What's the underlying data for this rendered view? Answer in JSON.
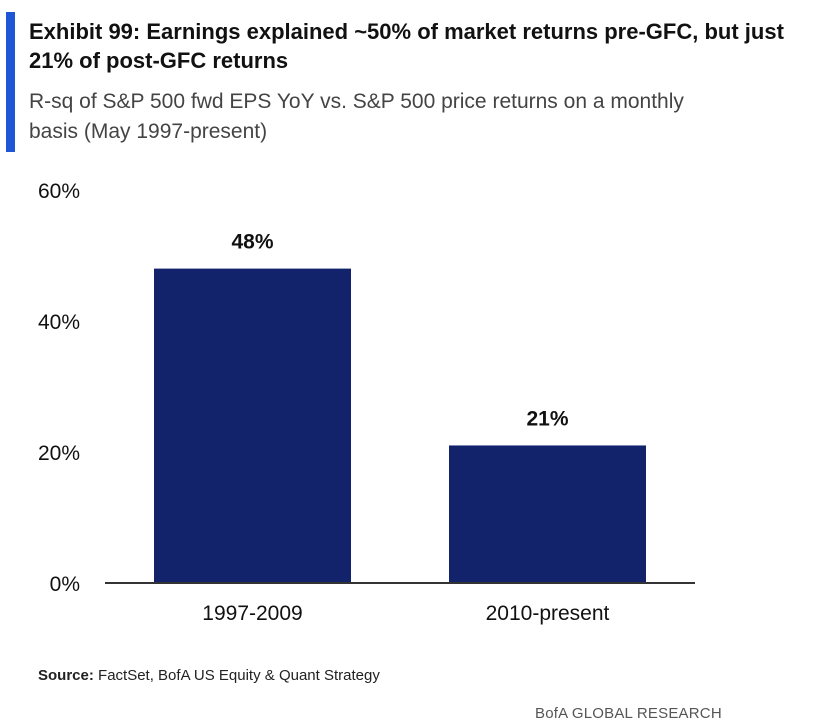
{
  "header": {
    "title": "Exhibit 99: Earnings explained ~50% of market returns pre-GFC, but just 21% of post-GFC returns",
    "subtitle": "R-sq of S&P 500 fwd EPS YoY vs. S&P 500 price returns on a monthly basis (May 1997-present)",
    "accent_color": "#1f56d6"
  },
  "chart_data": {
    "type": "bar",
    "title": "",
    "categories": [
      "1997-2009",
      "2010-present"
    ],
    "values": [
      48,
      21
    ],
    "data_labels": [
      "48%",
      "21%"
    ],
    "xlabel": "",
    "ylabel": "",
    "ylim": [
      0,
      60
    ],
    "y_ticks": [
      0,
      20,
      40,
      60
    ],
    "y_tick_labels": [
      "0%",
      "20%",
      "40%",
      "60%"
    ],
    "grid": false,
    "bar_color": "#13236b"
  },
  "footer": {
    "source_label": "Source:",
    "source_text": " FactSet, BofA US Equity & Quant Strategy",
    "brand": "BofA GLOBAL RESEARCH"
  }
}
